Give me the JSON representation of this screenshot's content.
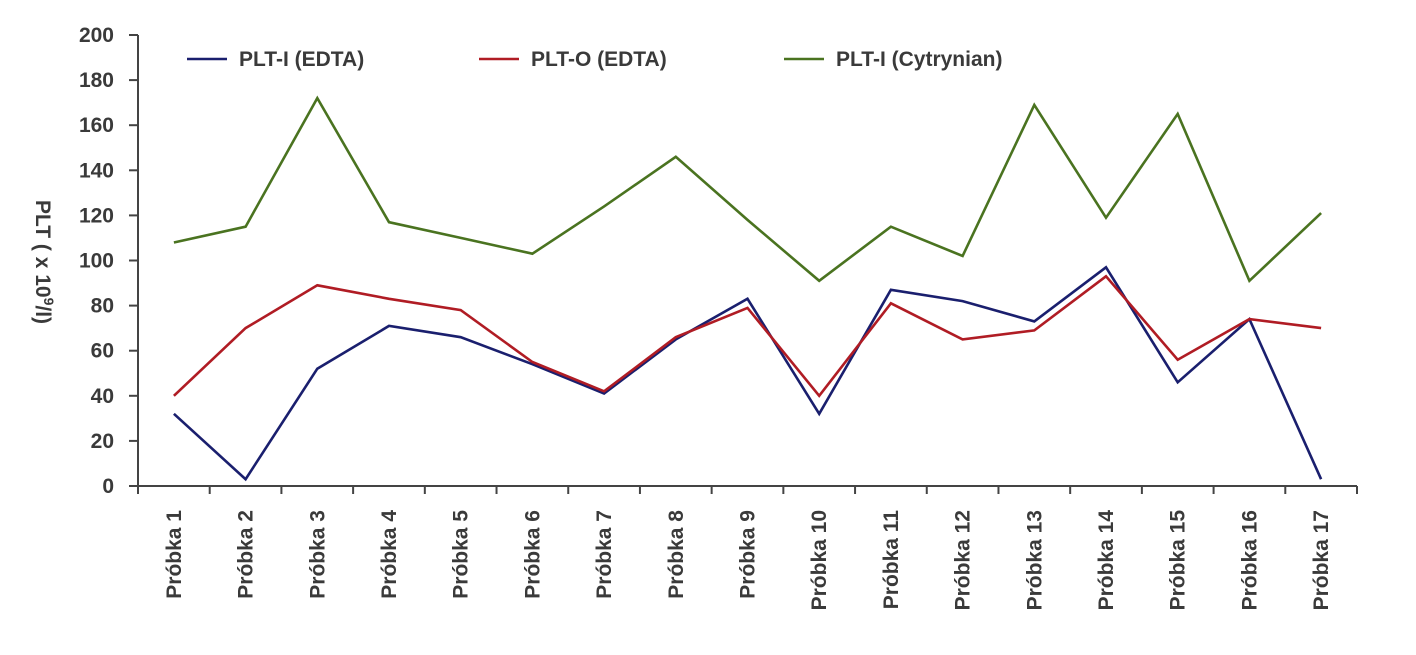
{
  "chart_data": {
    "type": "line",
    "title": "",
    "ylabel_pre": "PLT ( x 10",
    "ylabel_sup": "9",
    "ylabel_post": "/l)",
    "ylim": [
      0,
      200
    ],
    "yticks": [
      0,
      20,
      40,
      60,
      80,
      100,
      120,
      140,
      160,
      180,
      200
    ],
    "grid": false,
    "legend_position": "top",
    "categories": [
      "Próbka 1",
      "Próbka 2",
      "Próbka 3",
      "Próbka 4",
      "Próbka 5",
      "Próbka 6",
      "Próbka 7",
      "Próbka 8",
      "Próbka 9",
      "Próbka 10",
      "Próbka 11",
      "Próbka 12",
      "Próbka 13",
      "Próbka 14",
      "Próbka 15",
      "Próbka 16",
      "Próbka 17"
    ],
    "series": [
      {
        "name": "PLT-I (EDTA)",
        "color": "#1a1f6e",
        "values": [
          32,
          3,
          52,
          71,
          66,
          54,
          41,
          65,
          83,
          32,
          87,
          82,
          73,
          97,
          46,
          74,
          3
        ]
      },
      {
        "name": "PLT-O (EDTA)",
        "color": "#b01c24",
        "values": [
          40,
          70,
          89,
          83,
          78,
          55,
          42,
          66,
          79,
          40,
          81,
          65,
          69,
          93,
          56,
          74,
          70
        ]
      },
      {
        "name": "PLT-I (Cytrynian)",
        "color": "#4a7320",
        "values": [
          108,
          115,
          172,
          117,
          110,
          103,
          124,
          146,
          118,
          91,
          115,
          102,
          169,
          119,
          165,
          91,
          121
        ]
      }
    ]
  }
}
